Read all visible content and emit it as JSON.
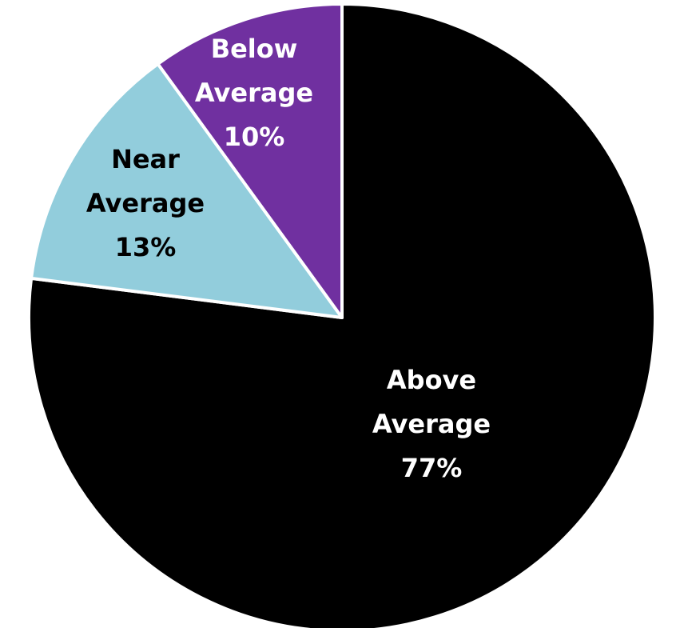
{
  "chart_data": {
    "type": "pie",
    "slices": [
      {
        "name": "Above Average",
        "value": 77,
        "label_lines": [
          "Above",
          "Average",
          "77%"
        ],
        "color": "#000000",
        "text_color": "#ffffff"
      },
      {
        "name": "Near Average",
        "value": 13,
        "label_lines": [
          "Near",
          "Average",
          "13%"
        ],
        "color": "#92CDDC",
        "text_color": "#000000"
      },
      {
        "name": "Below Average",
        "value": 10,
        "label_lines": [
          "Below",
          "Average",
          "10%"
        ],
        "color": "#7030A0",
        "text_color": "#ffffff"
      }
    ]
  }
}
